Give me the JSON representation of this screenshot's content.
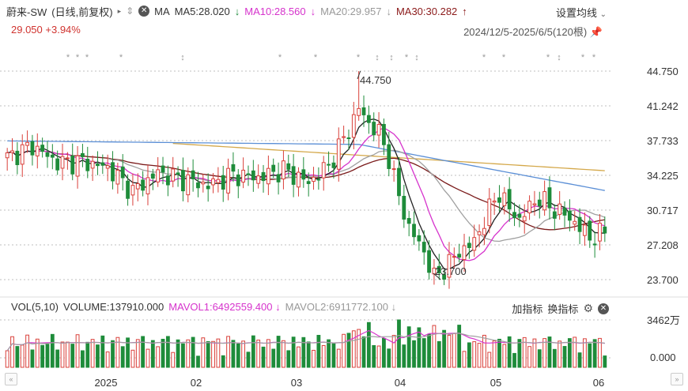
{
  "header": {
    "symbol": "蔚来-SW",
    "mode": "(日线,前复权)",
    "ma_label": "MA",
    "ma5": "MA5:28.020",
    "ma10": "MA10:28.560",
    "ma20": "MA20:29.957",
    "ma30": "MA30:30.282",
    "settings": "设置均线",
    "price": "29.050",
    "change": "+3.94%",
    "range": "2024/12/5-2025/6/5(120根)"
  },
  "volume_header": {
    "label": "VOL(5,10)",
    "volume": "VOLUME:137910.000",
    "mavol1": "MAVOL1:6492559.400",
    "mavol2": "MAVOL2:6911772.100",
    "add_indicator": "加指标",
    "switch_indicator": "换指标"
  },
  "colors": {
    "up": "#d9403a",
    "down": "#1e8c3a",
    "ma5": "#222222",
    "ma10": "#d633cc",
    "ma20": "#a0a0a0",
    "ma30": "#7a1a1a",
    "ma60": "#5b8fd6",
    "ma120": "#d4a84a"
  },
  "chart_data": {
    "type": "candlestick",
    "y_ticks": [
      "44.750",
      "41.242",
      "37.733",
      "34.225",
      "30.717",
      "27.208",
      "23.700"
    ],
    "ylim": [
      23.7,
      44.75
    ],
    "x_ticks": [
      "2025",
      "02",
      "03",
      "04",
      "05",
      "06"
    ],
    "high_annotation": "44.750",
    "low_annotation": "23.700",
    "volume_ticks": [
      "3462万",
      "0.000"
    ]
  }
}
